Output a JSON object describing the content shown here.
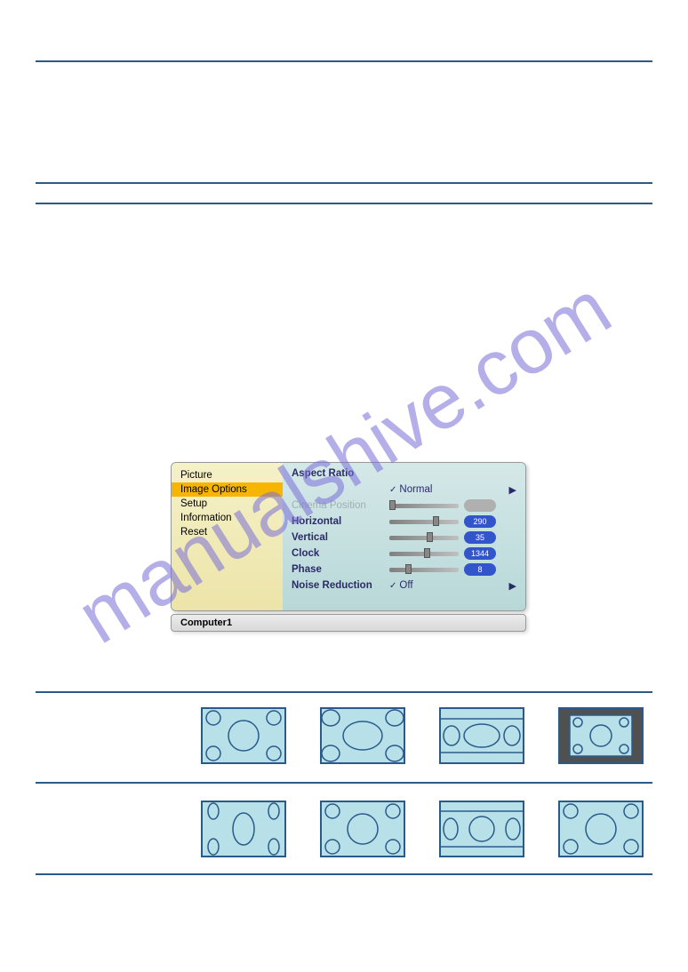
{
  "menu": {
    "left_items": [
      "Picture",
      "Image Options",
      "Setup",
      "Information",
      "Reset"
    ],
    "selected_index": 1,
    "header": "Aspect Ratio",
    "rows": [
      {
        "label": "",
        "type": "option",
        "value": "Normal"
      },
      {
        "label": "Cinema Position",
        "type": "slider",
        "disabled": true,
        "pos": 0.0,
        "badge": ""
      },
      {
        "label": "Horizontal",
        "type": "slider",
        "pos": 0.7,
        "badge": "290"
      },
      {
        "label": "Vertical",
        "type": "slider",
        "pos": 0.6,
        "badge": "35"
      },
      {
        "label": "Clock",
        "type": "slider",
        "pos": 0.55,
        "badge": "1344"
      },
      {
        "label": "Phase",
        "type": "slider",
        "pos": 0.25,
        "badge": "8"
      },
      {
        "label": "Noise Reduction",
        "type": "option",
        "value": "Off"
      }
    ],
    "footer": "Computer1",
    "colors": {
      "left_bg_top": "#f5f1c8",
      "left_bg_bot": "#ece4a8",
      "selected_bg": "#f7b500",
      "right_bg_top": "#d5e8e8",
      "right_bg_bot": "#b8d8d8",
      "text": "#2a2a6a",
      "badge": "#3355cc"
    }
  },
  "aspect_icons": {
    "row1": [
      {
        "type": "4x3_normal",
        "bg": "#b8e0e8",
        "border": "#2a5a8a"
      },
      {
        "type": "4x3_wide",
        "bg": "#b8e0e8",
        "border": "#2a5a8a"
      },
      {
        "type": "4x3_letterbox",
        "bg": "#b8e0e8",
        "border": "#2a5a8a"
      },
      {
        "type": "4x3_native",
        "bg": "#505050",
        "inner": "#b8e0e8",
        "border": "#2a5a8a"
      }
    ],
    "row2": [
      {
        "type": "4x3_squeeze",
        "bg": "#b8e0e8",
        "border": "#2a5a8a"
      },
      {
        "type": "4x3_normal",
        "bg": "#b8e0e8",
        "border": "#2a5a8a"
      },
      {
        "type": "4x3_stretch_bars",
        "bg": "#b8e0e8",
        "border": "#2a5a8a"
      },
      {
        "type": "4x3_normal",
        "bg": "#b8e0e8",
        "border": "#2a5a8a"
      }
    ]
  },
  "watermark": "manualshive.com",
  "lines": {
    "color": "#2a5a8a"
  }
}
